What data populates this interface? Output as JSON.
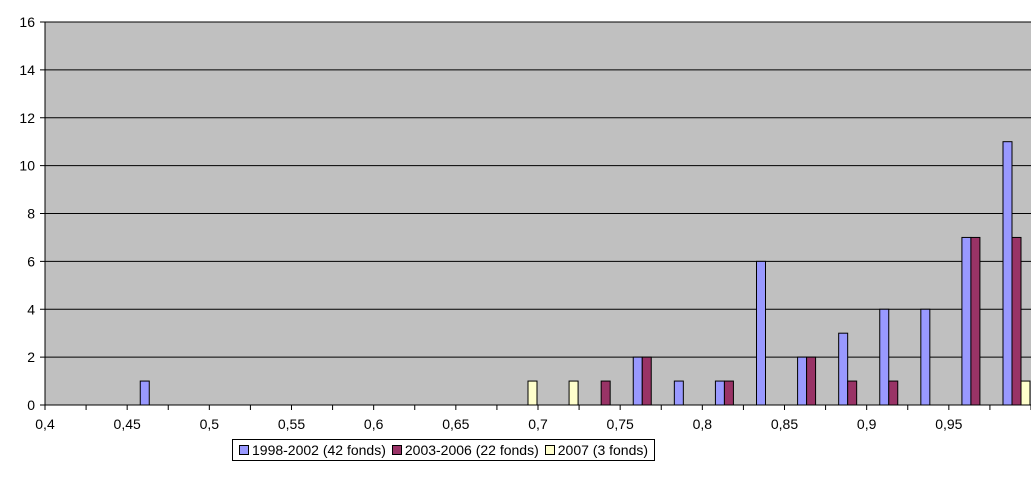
{
  "chart_data": {
    "type": "bar",
    "categories": [
      "0,4",
      "0,425",
      "0,45",
      "0,475",
      "0,5",
      "0,525",
      "0,55",
      "0,575",
      "0,6",
      "0,625",
      "0,65",
      "0,675",
      "0,7",
      "0,725",
      "0,75",
      "0,775",
      "0,8",
      "0,825",
      "0,85",
      "0,875",
      "0,9",
      "0,925",
      "0,95",
      "0,975"
    ],
    "x_tick_labels": [
      "0,4",
      "0,45",
      "0,5",
      "0,55",
      "0,6",
      "0,65",
      "0,7",
      "0,75",
      "0,8",
      "0,85",
      "0,9",
      "0,95"
    ],
    "series": [
      {
        "name": "1998-2002 (42 fonds)",
        "color": "#9999ff",
        "values": [
          0,
          0,
          1,
          0,
          0,
          0,
          0,
          0,
          0,
          0,
          0,
          0,
          0,
          0,
          2,
          1,
          1,
          6,
          2,
          3,
          4,
          4,
          7,
          11
        ]
      },
      {
        "name": "2003-2006 (22 fonds)",
        "color": "#993366",
        "values": [
          0,
          0,
          0,
          0,
          0,
          0,
          0,
          0,
          0,
          0,
          0,
          0,
          0,
          1,
          2,
          0,
          1,
          0,
          2,
          1,
          1,
          0,
          7,
          7
        ]
      },
      {
        "name": "2007 (3 fonds)",
        "color": "#ffffcc",
        "values": [
          0,
          0,
          0,
          0,
          0,
          0,
          0,
          0,
          0,
          0,
          0,
          1,
          1,
          0,
          0,
          0,
          0,
          0,
          0,
          0,
          0,
          0,
          0,
          1
        ]
      }
    ],
    "ylim": [
      0,
      16
    ],
    "y_ticks": [
      0,
      2,
      4,
      6,
      8,
      10,
      12,
      14,
      16
    ],
    "grid": true,
    "legend_position": "bottom",
    "plot_background": "#c0c0c0"
  }
}
